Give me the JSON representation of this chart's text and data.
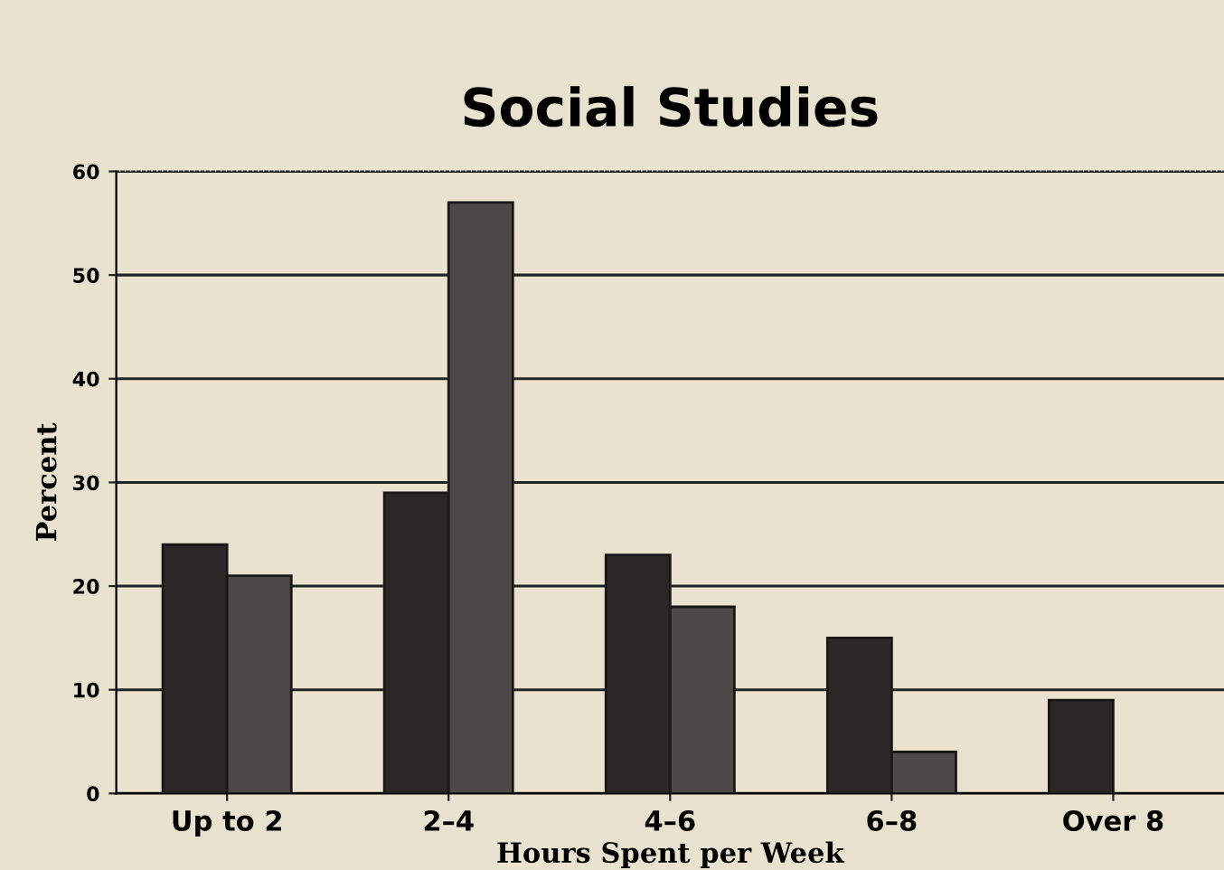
{
  "chart_data": {
    "type": "bar",
    "title": "Social Studies",
    "xlabel": "Hours Spent per Week",
    "ylabel": "Percent",
    "categories": [
      "Up to 2",
      "2–4",
      "4–6",
      "6–8",
      "Over 8"
    ],
    "series": [
      {
        "color": "#2b2727",
        "values": [
          24,
          29,
          23,
          15,
          9
        ]
      },
      {
        "color": "#4d4948",
        "values": [
          21,
          57,
          18,
          4,
          null
        ]
      }
    ],
    "ylim": [
      0,
      60
    ],
    "yticks": [
      0,
      10,
      20,
      30,
      40,
      50,
      60
    ],
    "grid": "y",
    "legend": false
  }
}
